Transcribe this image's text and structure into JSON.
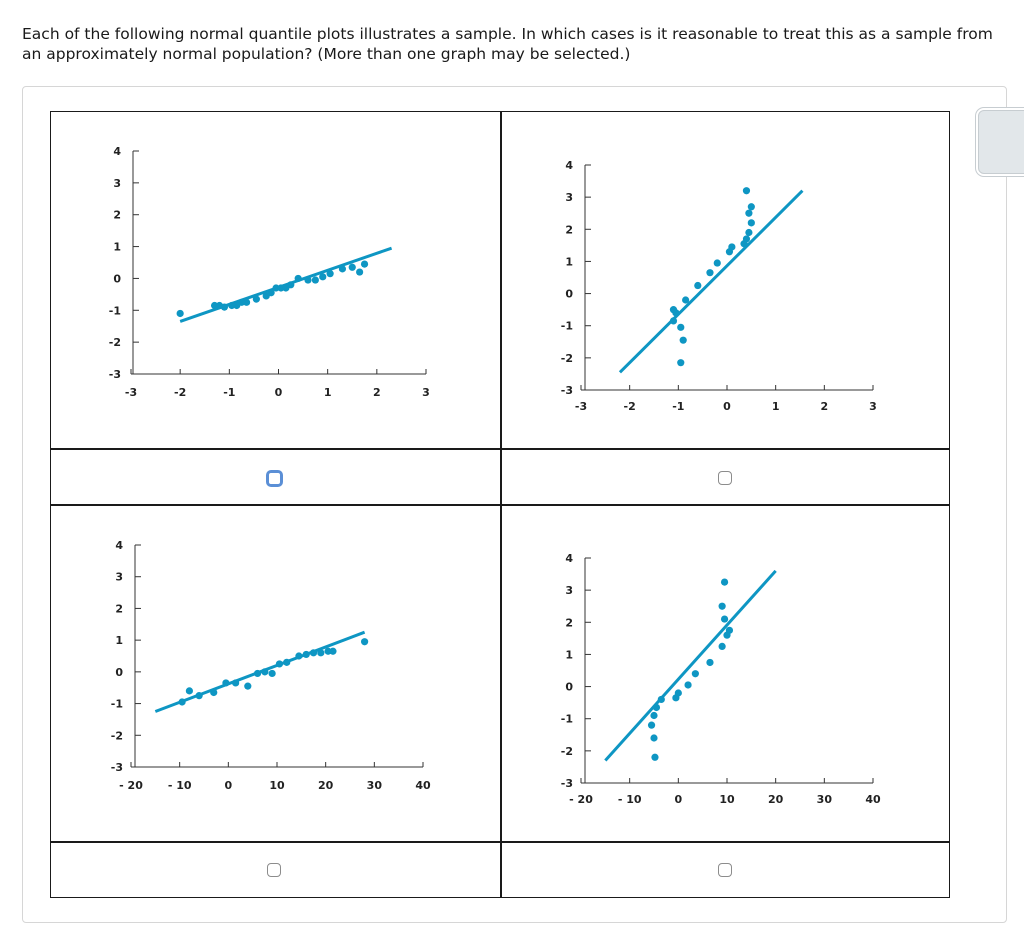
{
  "question": "Each of the following normal quantile plots illustrates a sample. In which cases is it reasonable to treat this as a sample from an approximately normal population? (More than one graph may be selected.)",
  "colors": {
    "accent": "#0e96c3",
    "line": "#0e96c3"
  },
  "options": [
    {
      "id": "A",
      "checked": false,
      "focused": true
    },
    {
      "id": "B",
      "checked": false,
      "focused": false
    },
    {
      "id": "C",
      "checked": false,
      "focused": false
    },
    {
      "id": "D",
      "checked": false,
      "focused": false
    }
  ],
  "chart_data": [
    {
      "type": "scatter",
      "xlim": [
        -3,
        3
      ],
      "ylim": [
        -3,
        4
      ],
      "xticks": [
        "-3",
        "-2",
        "-1",
        "0",
        "1",
        "2",
        "3"
      ],
      "yticks": [
        "4",
        "3",
        "2",
        "1",
        "0",
        "-1",
        "-2",
        "-3"
      ],
      "line": {
        "x": [
          -2,
          2.3
        ],
        "y": [
          -1.35,
          0.95
        ]
      },
      "points": [
        {
          "x": -2.0,
          "y": -1.1
        },
        {
          "x": -1.3,
          "y": -0.85
        },
        {
          "x": -1.2,
          "y": -0.85
        },
        {
          "x": -1.1,
          "y": -0.9
        },
        {
          "x": -0.95,
          "y": -0.85
        },
        {
          "x": -0.85,
          "y": -0.85
        },
        {
          "x": -0.75,
          "y": -0.75
        },
        {
          "x": -0.65,
          "y": -0.75
        },
        {
          "x": -0.45,
          "y": -0.65
        },
        {
          "x": -0.25,
          "y": -0.55
        },
        {
          "x": -0.15,
          "y": -0.45
        },
        {
          "x": -0.05,
          "y": -0.3
        },
        {
          "x": 0.05,
          "y": -0.3
        },
        {
          "x": 0.15,
          "y": -0.3
        },
        {
          "x": 0.25,
          "y": -0.2
        },
        {
          "x": 0.4,
          "y": 0.0
        },
        {
          "x": 0.6,
          "y": -0.05
        },
        {
          "x": 0.75,
          "y": -0.05
        },
        {
          "x": 0.9,
          "y": 0.05
        },
        {
          "x": 1.05,
          "y": 0.15
        },
        {
          "x": 1.3,
          "y": 0.3
        },
        {
          "x": 1.5,
          "y": 0.35
        },
        {
          "x": 1.65,
          "y": 0.2
        },
        {
          "x": 1.75,
          "y": 0.45
        }
      ]
    },
    {
      "type": "scatter",
      "xlim": [
        -3,
        3
      ],
      "ylim": [
        -3,
        4
      ],
      "xticks": [
        "-3",
        "-2",
        "-1",
        "0",
        "1",
        "2",
        "3"
      ],
      "yticks": [
        "4",
        "3",
        "2",
        "1",
        "0",
        "-1",
        "-2",
        "-3"
      ],
      "line": {
        "x": [
          -2.2,
          1.55
        ],
        "y": [
          -2.45,
          3.2
        ]
      },
      "points": [
        {
          "x": -1.1,
          "y": -0.5
        },
        {
          "x": -1.05,
          "y": -0.6
        },
        {
          "x": -1.1,
          "y": -0.85
        },
        {
          "x": -0.95,
          "y": -1.05
        },
        {
          "x": -0.9,
          "y": -1.45
        },
        {
          "x": -0.95,
          "y": -2.15
        },
        {
          "x": -0.85,
          "y": -0.2
        },
        {
          "x": -0.6,
          "y": 0.25
        },
        {
          "x": -0.35,
          "y": 0.65
        },
        {
          "x": -0.2,
          "y": 0.95
        },
        {
          "x": 0.05,
          "y": 1.3
        },
        {
          "x": 0.1,
          "y": 1.45
        },
        {
          "x": 0.35,
          "y": 1.55
        },
        {
          "x": 0.4,
          "y": 1.7
        },
        {
          "x": 0.45,
          "y": 1.9
        },
        {
          "x": 0.5,
          "y": 2.2
        },
        {
          "x": 0.45,
          "y": 2.5
        },
        {
          "x": 0.5,
          "y": 2.7
        },
        {
          "x": 0.4,
          "y": 3.2
        }
      ]
    },
    {
      "type": "scatter",
      "xlim": [
        -20,
        40
      ],
      "ylim": [
        -3,
        4
      ],
      "xticks": [
        "- 20",
        "- 10",
        "0",
        "10",
        "20",
        "30",
        "40"
      ],
      "yticks": [
        "4",
        "3",
        "2",
        "1",
        "0",
        "-1",
        "-2",
        "-3"
      ],
      "line": {
        "x": [
          -15,
          28
        ],
        "y": [
          -1.25,
          1.25
        ]
      },
      "points": [
        {
          "x": -9.5,
          "y": -0.95
        },
        {
          "x": -8,
          "y": -0.6
        },
        {
          "x": -6,
          "y": -0.75
        },
        {
          "x": -3,
          "y": -0.65
        },
        {
          "x": -0.5,
          "y": -0.35
        },
        {
          "x": 1.5,
          "y": -0.35
        },
        {
          "x": 4,
          "y": -0.45
        },
        {
          "x": 6,
          "y": -0.05
        },
        {
          "x": 7.5,
          "y": 0.0
        },
        {
          "x": 9,
          "y": -0.05
        },
        {
          "x": 10.5,
          "y": 0.25
        },
        {
          "x": 12,
          "y": 0.3
        },
        {
          "x": 14.5,
          "y": 0.5
        },
        {
          "x": 16,
          "y": 0.55
        },
        {
          "x": 17.5,
          "y": 0.6
        },
        {
          "x": 19,
          "y": 0.6
        },
        {
          "x": 20.5,
          "y": 0.65
        },
        {
          "x": 21.5,
          "y": 0.65
        },
        {
          "x": 28,
          "y": 0.95
        }
      ]
    },
    {
      "type": "scatter",
      "xlim": [
        -20,
        40
      ],
      "ylim": [
        -3,
        4
      ],
      "xticks": [
        "- 20",
        "- 10",
        "0",
        "10",
        "20",
        "30",
        "40"
      ],
      "yticks": [
        "4",
        "3",
        "2",
        "1",
        "0",
        "-1",
        "-2",
        "-3"
      ],
      "line": {
        "x": [
          -15,
          20
        ],
        "y": [
          -2.3,
          3.6
        ]
      },
      "points": [
        {
          "x": -4.8,
          "y": -2.2
        },
        {
          "x": -5,
          "y": -1.6
        },
        {
          "x": -5.5,
          "y": -1.2
        },
        {
          "x": -5,
          "y": -0.9
        },
        {
          "x": -4.5,
          "y": -0.65
        },
        {
          "x": -3.5,
          "y": -0.4
        },
        {
          "x": -0.5,
          "y": -0.35
        },
        {
          "x": 0.0,
          "y": -0.2
        },
        {
          "x": 2,
          "y": 0.05
        },
        {
          "x": 3.5,
          "y": 0.4
        },
        {
          "x": 6.5,
          "y": 0.75
        },
        {
          "x": 9,
          "y": 1.25
        },
        {
          "x": 10,
          "y": 1.6
        },
        {
          "x": 10.5,
          "y": 1.75
        },
        {
          "x": 9.5,
          "y": 2.1
        },
        {
          "x": 9,
          "y": 2.5
        },
        {
          "x": 9.5,
          "y": 3.25
        }
      ]
    }
  ]
}
